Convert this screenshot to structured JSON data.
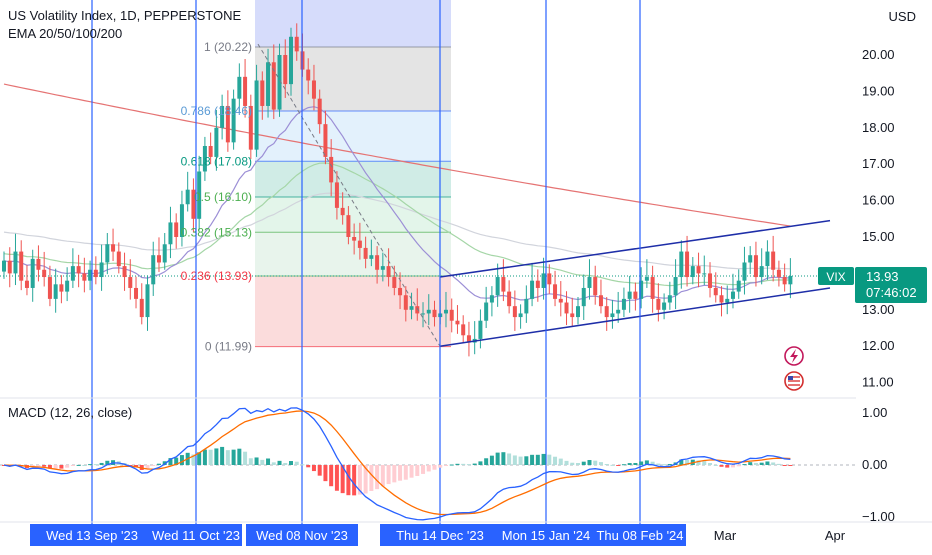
{
  "header": {
    "title": "US Volatility Index, 1D, PEPPERSTONE",
    "indicator": "EMA 20/50/100/200",
    "currency": "USD"
  },
  "price_scale": {
    "labels": [
      "20.00",
      "19.00",
      "18.00",
      "17.00",
      "16.00",
      "15.00",
      "14.00",
      "13.00",
      "12.00",
      "11.00"
    ],
    "symbol_tag": "VIX",
    "last_price": "13.93",
    "countdown": "07:46:02"
  },
  "fib": {
    "labels": [
      "1 (20.22)",
      "0.786 (18.46)",
      "0.618 (17.08)",
      "0.5 (16.10)",
      "0.382 (15.13)",
      "0.236 (13.93)",
      "0 (11.99)"
    ]
  },
  "macd": {
    "title": "MACD (12, 26, close)",
    "scale": [
      "1.00",
      "0.00",
      "−1.00"
    ]
  },
  "time_axis": {
    "highlighted": [
      "Wed 13 Sep '23",
      "Wed 11 Oct '23",
      "Wed 08 Nov '23",
      "Thu 14 Dec '23",
      "Mon 15 Jan '24",
      "Thu 08 Feb '24"
    ],
    "plain": [
      "Mar",
      "Apr"
    ]
  },
  "colors": {
    "up": "#26a69a",
    "down": "#ef5350",
    "vline": "#2962ff",
    "ema20": "#9c8fd6",
    "ema50": "#a5d6a7",
    "ema100": "#d1d4dc",
    "ema200": "#e57373",
    "macd": "#2962ff",
    "signal": "#ff6d00",
    "channel": "#1e2ea8",
    "last_price": "#089981"
  },
  "chart_data": {
    "type": "candlestick",
    "symbol": "VIX",
    "interval": "1D",
    "ylim": [
      10.6,
      21.0
    ],
    "last_price": 13.93,
    "fibonacci_levels": [
      {
        "ratio": 1,
        "value": 20.22
      },
      {
        "ratio": 0.786,
        "value": 18.46
      },
      {
        "ratio": 0.618,
        "value": 17.08
      },
      {
        "ratio": 0.5,
        "value": 16.1
      },
      {
        "ratio": 0.382,
        "value": 15.13
      },
      {
        "ratio": 0.236,
        "value": 13.93
      },
      {
        "ratio": 0,
        "value": 11.99
      }
    ],
    "close_series": [
      14.35,
      14.0,
      14.6,
      13.8,
      13.6,
      14.4,
      14.1,
      13.9,
      13.3,
      13.7,
      13.5,
      13.8,
      14.2,
      14.0,
      13.8,
      14.1,
      13.9,
      14.3,
      14.8,
      14.6,
      14.2,
      13.9,
      13.6,
      13.3,
      12.8,
      13.7,
      14.5,
      14.3,
      14.8,
      15.4,
      15.0,
      15.9,
      16.3,
      15.5,
      16.8,
      17.5,
      17.2,
      18.0,
      18.6,
      17.6,
      18.8,
      19.4,
      18.6,
      17.4,
      19.3,
      18.6,
      19.8,
      18.5,
      20.0,
      19.2,
      20.5,
      20.1,
      19.6,
      19.3,
      18.8,
      18.1,
      17.2,
      16.5,
      15.8,
      15.6,
      15.0,
      14.9,
      14.7,
      14.4,
      14.5,
      14.1,
      14.2,
      13.9,
      13.6,
      13.4,
      13.0,
      13.1,
      12.9,
      12.9,
      13.0,
      12.8,
      12.9,
      13.0,
      12.7,
      12.6,
      12.3,
      12.1,
      12.2,
      12.7,
      13.2,
      13.4,
      13.9,
      13.5,
      13.1,
      12.8,
      12.9,
      13.3,
      13.8,
      13.6,
      14.0,
      13.7,
      13.3,
      13.2,
      12.9,
      12.8,
      13.1,
      13.6,
      13.9,
      13.4,
      13.1,
      12.8,
      12.9,
      13.0,
      13.3,
      13.5,
      13.3,
      13.8,
      13.9,
      13.3,
      13.0,
      13.2,
      13.4,
      13.9,
      14.6,
      13.9,
      14.2,
      14.0,
      14.0,
      13.6,
      13.4,
      13.2,
      13.3,
      13.5,
      13.8,
      14.3,
      14.5,
      13.9,
      14.2,
      14.6,
      14.1,
      13.9,
      13.7,
      13.93
    ],
    "ema200_start_end": [
      19.2,
      15.3
    ],
    "channel": {
      "lower": [
        [
          12.0,
          "Dec '23"
        ],
        [
          13.5,
          "Mar '24"
        ]
      ],
      "upper": [
        [
          13.9,
          "Dec '23"
        ],
        [
          15.4,
          "Mar '24"
        ]
      ]
    },
    "macd_range": [
      -1.0,
      1.0
    ],
    "vertical_markers": [
      "Wed 13 Sep '23",
      "Wed 11 Oct '23",
      "Wed 08 Nov '23",
      "Thu 14 Dec '23",
      "Mon 15 Jan '24",
      "Thu 08 Feb '24"
    ]
  }
}
